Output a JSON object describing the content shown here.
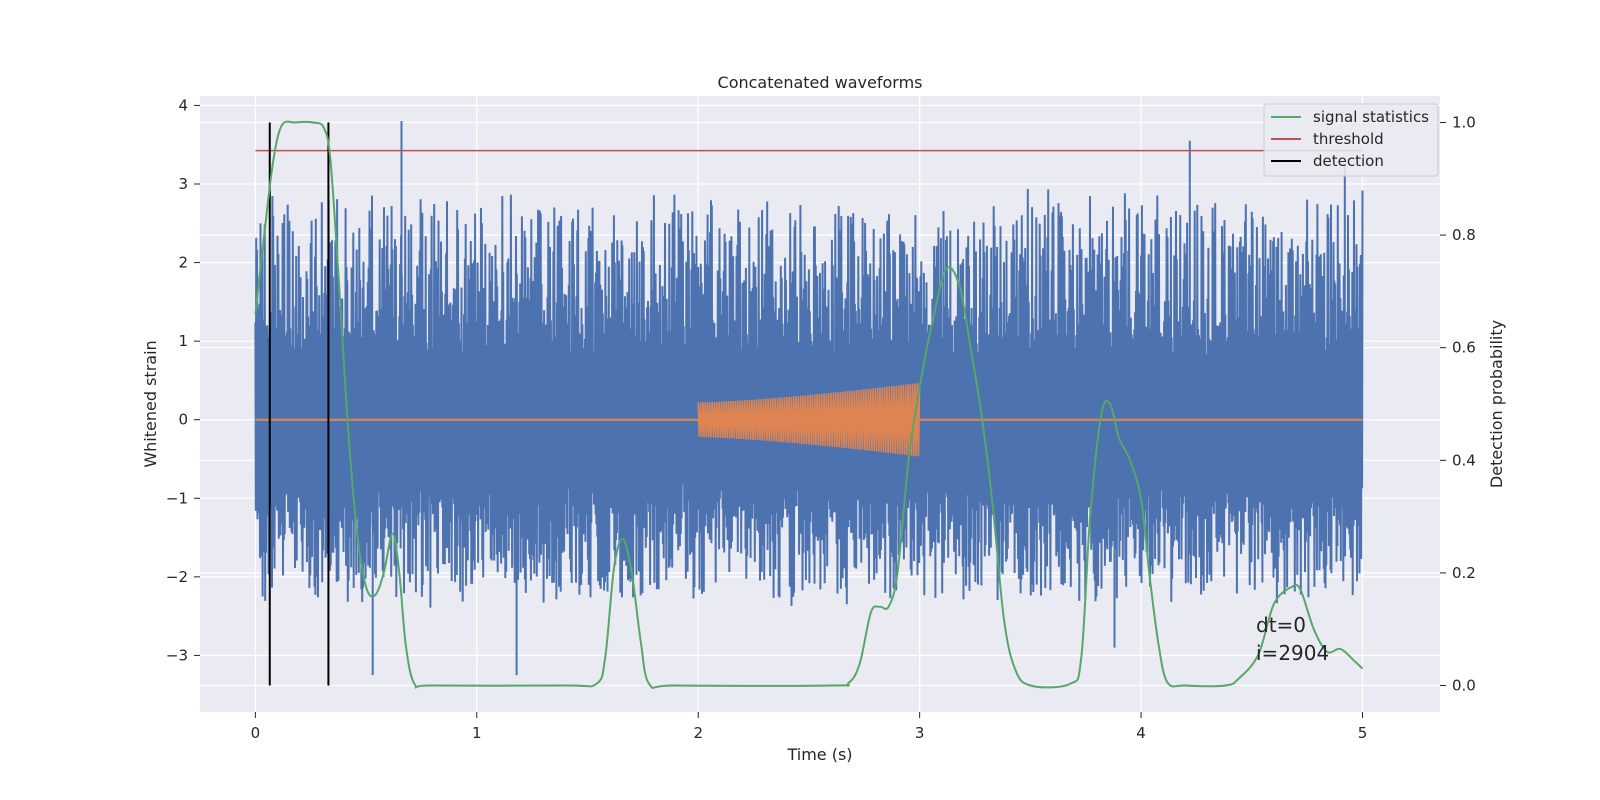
{
  "chart_data": {
    "type": "line",
    "title": "Concatenated waveforms",
    "xlabel": "Time (s)",
    "ylabel": "Whitened strain",
    "ylabel_right": "Detection probability",
    "xlim": [
      -0.25,
      5.35
    ],
    "ylim": [
      -3.72,
      4.12
    ],
    "ylim_right": [
      -0.047,
      1.047
    ],
    "x_ticks": [
      0,
      1,
      2,
      3,
      4,
      5
    ],
    "x_tick_labels": [
      "0",
      "1",
      "2",
      "3",
      "4",
      "5"
    ],
    "y_ticks": [
      -3,
      -2,
      -1,
      0,
      1,
      2,
      3,
      4
    ],
    "y_tick_labels": [
      "−3",
      "−2",
      "−1",
      "0",
      "1",
      "2",
      "3",
      "4"
    ],
    "y_right_ticks": [
      0.0,
      0.2,
      0.4,
      0.6,
      0.8,
      1.0
    ],
    "y_right_tick_labels": [
      "0.0",
      "0.2",
      "0.4",
      "0.6",
      "0.8",
      "1.0"
    ],
    "grid": true,
    "legend_position": "top-right",
    "legend": [
      {
        "label": "signal statistics",
        "color": "#55a868"
      },
      {
        "label": "threshold",
        "color": "#c44e52"
      },
      {
        "label": "detection",
        "color": "#000000"
      }
    ],
    "colors": {
      "background": "#eaeaf2",
      "grid": "#ffffff",
      "noise": "#4c72b0",
      "injection": "#dd8452",
      "statistic": "#55a868",
      "threshold": "#c44e52",
      "detection": "#000000"
    },
    "noise": {
      "x_range": [
        0,
        5
      ],
      "approx_range": [
        -3.3,
        3.8
      ],
      "notable_peaks": [
        [
          0.66,
          3.8
        ],
        [
          4.22,
          3.55
        ],
        [
          4.92,
          3.25
        ],
        [
          0.53,
          -3.25
        ],
        [
          1.18,
          -3.25
        ],
        [
          3.88,
          -2.9
        ]
      ]
    },
    "injection": {
      "x_range": [
        2.0,
        3.0
      ],
      "amplitude_start": 0.22,
      "amplitude_end": 0.47,
      "flat_value": 0
    },
    "threshold": {
      "value_right": 0.95,
      "x_range": [
        0,
        5
      ]
    },
    "detections_x": [
      0.065,
      0.33
    ],
    "signal_statistics": [
      [
        0.0,
        0.66
      ],
      [
        0.04,
        0.8
      ],
      [
        0.08,
        0.93
      ],
      [
        0.12,
        0.995
      ],
      [
        0.18,
        1.0
      ],
      [
        0.26,
        1.0
      ],
      [
        0.31,
        0.99
      ],
      [
        0.34,
        0.93
      ],
      [
        0.38,
        0.7
      ],
      [
        0.42,
        0.45
      ],
      [
        0.46,
        0.27
      ],
      [
        0.5,
        0.175
      ],
      [
        0.54,
        0.16
      ],
      [
        0.58,
        0.2
      ],
      [
        0.62,
        0.27
      ],
      [
        0.65,
        0.2
      ],
      [
        0.68,
        0.07
      ],
      [
        0.72,
        0.002
      ],
      [
        0.8,
        0.0
      ],
      [
        1.4,
        0.0
      ],
      [
        1.54,
        0.003
      ],
      [
        1.58,
        0.05
      ],
      [
        1.62,
        0.21
      ],
      [
        1.66,
        0.26
      ],
      [
        1.7,
        0.2
      ],
      [
        1.74,
        0.08
      ],
      [
        1.78,
        0.002
      ],
      [
        1.9,
        0.0
      ],
      [
        2.6,
        0.0
      ],
      [
        2.68,
        0.005
      ],
      [
        2.73,
        0.04
      ],
      [
        2.78,
        0.13
      ],
      [
        2.82,
        0.14
      ],
      [
        2.86,
        0.14
      ],
      [
        2.9,
        0.2
      ],
      [
        2.95,
        0.4
      ],
      [
        3.0,
        0.53
      ],
      [
        3.06,
        0.65
      ],
      [
        3.12,
        0.74
      ],
      [
        3.18,
        0.71
      ],
      [
        3.23,
        0.6
      ],
      [
        3.28,
        0.48
      ],
      [
        3.33,
        0.32
      ],
      [
        3.38,
        0.12
      ],
      [
        3.43,
        0.03
      ],
      [
        3.5,
        0.0
      ],
      [
        3.68,
        0.003
      ],
      [
        3.73,
        0.05
      ],
      [
        3.77,
        0.3
      ],
      [
        3.82,
        0.48
      ],
      [
        3.86,
        0.5
      ],
      [
        3.9,
        0.44
      ],
      [
        3.95,
        0.4
      ],
      [
        4.0,
        0.33
      ],
      [
        4.04,
        0.19
      ],
      [
        4.08,
        0.07
      ],
      [
        4.12,
        0.005
      ],
      [
        4.2,
        0.0
      ],
      [
        4.38,
        0.0
      ],
      [
        4.44,
        0.012
      ],
      [
        4.53,
        0.055
      ],
      [
        4.6,
        0.145
      ],
      [
        4.68,
        0.175
      ],
      [
        4.72,
        0.17
      ],
      [
        4.78,
        0.1
      ],
      [
        4.84,
        0.06
      ],
      [
        4.9,
        0.065
      ],
      [
        4.96,
        0.045
      ],
      [
        5.0,
        0.03
      ]
    ]
  },
  "annotation": {
    "dt": "dt=0",
    "i": "i=2904"
  }
}
